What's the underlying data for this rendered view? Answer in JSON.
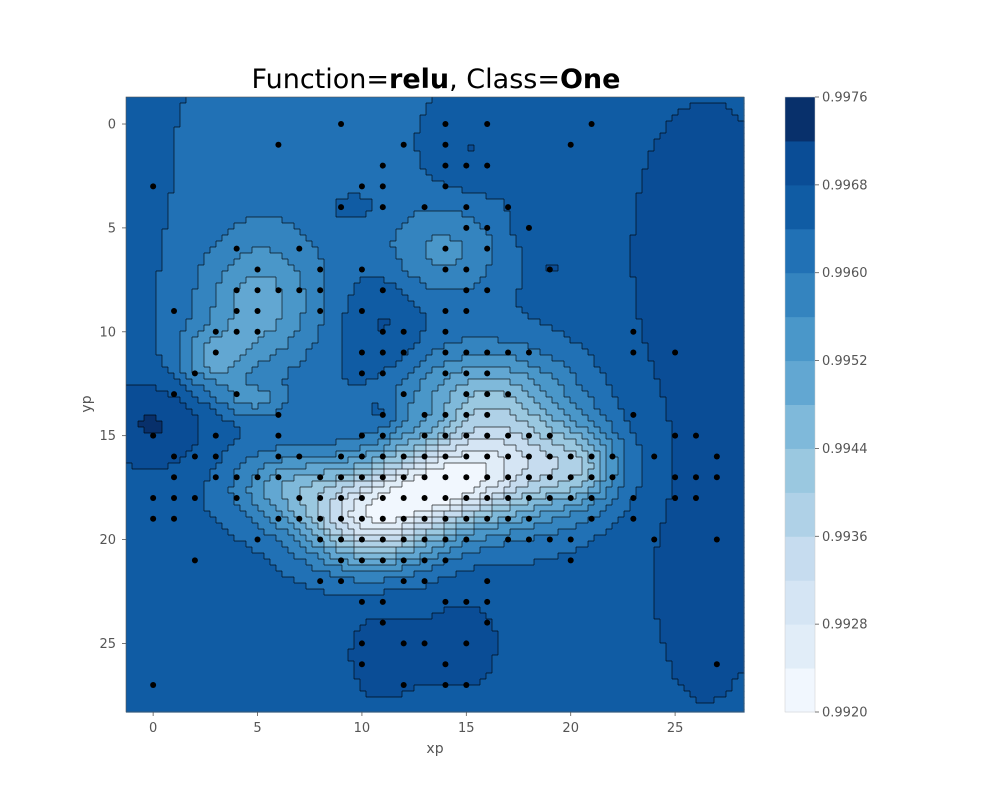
{
  "chart_data": {
    "type": "heatmap",
    "title_parts": [
      "Function=",
      "relu",
      ", Class=",
      "One"
    ],
    "xlabel": "xp",
    "ylabel": "yp",
    "xlim": [
      -1.3,
      28.3
    ],
    "ylim": [
      28.3,
      -1.3
    ],
    "x_ticks": [
      0,
      5,
      10,
      15,
      20,
      25
    ],
    "y_ticks": [
      0,
      5,
      10,
      15,
      20,
      25
    ],
    "colorbar": {
      "min": 0.992,
      "max": 0.9976,
      "levels": 14,
      "tick_values": [
        0.992,
        0.9928,
        0.9936,
        0.9944,
        0.9952,
        0.996,
        0.9968,
        0.9976
      ],
      "tick_labels": [
        "0.9920",
        "0.9928",
        "0.9936",
        "0.9944",
        "0.9952",
        "0.9960",
        "0.9968",
        "0.9976"
      ],
      "colors": [
        "#f1f7fe",
        "#e1edf8",
        "#d5e5f4",
        "#c6dcef",
        "#afd1e7",
        "#9ac8e0",
        "#7fb9da",
        "#62a7d2",
        "#4a97c9",
        "#3484bf",
        "#2171b5",
        "#105ca4",
        "#0a4d96",
        "#08306b"
      ]
    },
    "field": {
      "background": 0.99655,
      "features": [
        {
          "x": 10.5,
          "y": 19.0,
          "sx": 2.2,
          "sy": 1.6,
          "a": -0.0036
        },
        {
          "x": 16.5,
          "y": 16.5,
          "sx": 3.0,
          "sy": 1.9,
          "a": -0.0032
        },
        {
          "x": 13.5,
          "y": 17.5,
          "sx": 2.0,
          "sy": 1.3,
          "a": -0.0021
        },
        {
          "x": 16.0,
          "y": 13.0,
          "sx": 2.8,
          "sy": 1.7,
          "a": -0.0016
        },
        {
          "x": 6.5,
          "y": 17.5,
          "sx": 2.0,
          "sy": 1.3,
          "a": -0.0014
        },
        {
          "x": 5.0,
          "y": 8.8,
          "sx": 2.0,
          "sy": 2.3,
          "a": -0.0014
        },
        {
          "x": 2.8,
          "y": 11.4,
          "sx": 1.2,
          "sy": 1.0,
          "a": -0.0011
        },
        {
          "x": 14.0,
          "y": 6.2,
          "sx": 2.0,
          "sy": 1.6,
          "a": -0.0009
        },
        {
          "x": 20.5,
          "y": 16.5,
          "sx": 1.3,
          "sy": 1.2,
          "a": -0.0012
        },
        {
          "x": 4.8,
          "y": 13.3,
          "sx": 1.2,
          "sy": 0.6,
          "a": -0.0008
        },
        {
          "x": 8.0,
          "y": 2.0,
          "sx": 5.0,
          "sy": 6.0,
          "a": -0.0004
        },
        {
          "x": 11.0,
          "y": 9.5,
          "sx": 1.4,
          "sy": 2.0,
          "a": 0.0005
        },
        {
          "x": 15.0,
          "y": 1.2,
          "sx": 1.5,
          "sy": 1.4,
          "a": 0.0004
        },
        {
          "x": 9.5,
          "y": 4.0,
          "sx": 1.5,
          "sy": 0.9,
          "a": 0.0003
        },
        {
          "x": 11.0,
          "y": 25.5,
          "sx": 1.6,
          "sy": 2.2,
          "a": 0.0004
        },
        {
          "x": 15.0,
          "y": 25.0,
          "sx": 1.5,
          "sy": 2.0,
          "a": 0.0004
        },
        {
          "x": 0.0,
          "y": 14.5,
          "sx": 1.8,
          "sy": 1.5,
          "a": 0.0007
        },
        {
          "x": 26.5,
          "y": 6.0,
          "sx": 3.0,
          "sy": 6.0,
          "a": 0.0005
        },
        {
          "x": 26.5,
          "y": 22.0,
          "sx": 2.5,
          "sy": 6.0,
          "a": 0.0004
        },
        {
          "x": 19.0,
          "y": 7.0,
          "sx": 0.7,
          "sy": 0.6,
          "a": 0.0003
        },
        {
          "x": 18.0,
          "y": 5.0,
          "sx": 0.7,
          "sy": 0.6,
          "a": 0.0003
        },
        {
          "x": 11.0,
          "y": 14.0,
          "sx": 0.6,
          "sy": 0.6,
          "a": 0.0004
        },
        {
          "x": 13.5,
          "y": 14.5,
          "sx": 0.8,
          "sy": 0.8,
          "a": 0.0004
        }
      ]
    },
    "points": [
      [
        0,
        3
      ],
      [
        0,
        15
      ],
      [
        0,
        18
      ],
      [
        0,
        19
      ],
      [
        0,
        27
      ],
      [
        1,
        9
      ],
      [
        1,
        13
      ],
      [
        1,
        16
      ],
      [
        1,
        17
      ],
      [
        1,
        18
      ],
      [
        1,
        19
      ],
      [
        2,
        12
      ],
      [
        2,
        16
      ],
      [
        2,
        18
      ],
      [
        2,
        21
      ],
      [
        3,
        10
      ],
      [
        3,
        11
      ],
      [
        3,
        15
      ],
      [
        3,
        16
      ],
      [
        3,
        17
      ],
      [
        4,
        6
      ],
      [
        4,
        8
      ],
      [
        4,
        9
      ],
      [
        4,
        10
      ],
      [
        4,
        13
      ],
      [
        4,
        17
      ],
      [
        4,
        18
      ],
      [
        5,
        7
      ],
      [
        5,
        8
      ],
      [
        5,
        9
      ],
      [
        5,
        10
      ],
      [
        5,
        17
      ],
      [
        5,
        20
      ],
      [
        6,
        1
      ],
      [
        6,
        8
      ],
      [
        6,
        14
      ],
      [
        6,
        15
      ],
      [
        6,
        16
      ],
      [
        6,
        17
      ],
      [
        6,
        19
      ],
      [
        7,
        6
      ],
      [
        7,
        8
      ],
      [
        7,
        16
      ],
      [
        7,
        18
      ],
      [
        7,
        19
      ],
      [
        8,
        7
      ],
      [
        8,
        8
      ],
      [
        8,
        9
      ],
      [
        8,
        17
      ],
      [
        8,
        18
      ],
      [
        8,
        19
      ],
      [
        8,
        20
      ],
      [
        8,
        22
      ],
      [
        9,
        0
      ],
      [
        9,
        4
      ],
      [
        9,
        16
      ],
      [
        9,
        17
      ],
      [
        9,
        18
      ],
      [
        9,
        19
      ],
      [
        9,
        20
      ],
      [
        9,
        21
      ],
      [
        9,
        22
      ],
      [
        10,
        3
      ],
      [
        10,
        7
      ],
      [
        10,
        9
      ],
      [
        10,
        11
      ],
      [
        10,
        12
      ],
      [
        10,
        15
      ],
      [
        10,
        16
      ],
      [
        10,
        17
      ],
      [
        10,
        18
      ],
      [
        10,
        19
      ],
      [
        10,
        20
      ],
      [
        10,
        21
      ],
      [
        10,
        23
      ],
      [
        10,
        25
      ],
      [
        10,
        26
      ],
      [
        11,
        2
      ],
      [
        11,
        3
      ],
      [
        11,
        4
      ],
      [
        11,
        8
      ],
      [
        11,
        10
      ],
      [
        11,
        11
      ],
      [
        11,
        12
      ],
      [
        11,
        14
      ],
      [
        11,
        15
      ],
      [
        11,
        16
      ],
      [
        11,
        17
      ],
      [
        11,
        18
      ],
      [
        11,
        19
      ],
      [
        11,
        20
      ],
      [
        11,
        21
      ],
      [
        11,
        23
      ],
      [
        11,
        24
      ],
      [
        12,
        1
      ],
      [
        12,
        10
      ],
      [
        12,
        11
      ],
      [
        12,
        13
      ],
      [
        12,
        16
      ],
      [
        12,
        17
      ],
      [
        12,
        18
      ],
      [
        12,
        19
      ],
      [
        12,
        20
      ],
      [
        12,
        21
      ],
      [
        12,
        22
      ],
      [
        12,
        25
      ],
      [
        12,
        27
      ],
      [
        13,
        4
      ],
      [
        13,
        14
      ],
      [
        13,
        15
      ],
      [
        13,
        16
      ],
      [
        13,
        17
      ],
      [
        13,
        18
      ],
      [
        13,
        19
      ],
      [
        13,
        20
      ],
      [
        13,
        21
      ],
      [
        13,
        22
      ],
      [
        13,
        25
      ],
      [
        14,
        0
      ],
      [
        14,
        1
      ],
      [
        14,
        2
      ],
      [
        14,
        3
      ],
      [
        14,
        6
      ],
      [
        14,
        7
      ],
      [
        14,
        9
      ],
      [
        14,
        10
      ],
      [
        14,
        11
      ],
      [
        14,
        12
      ],
      [
        14,
        14
      ],
      [
        14,
        15
      ],
      [
        14,
        16
      ],
      [
        14,
        17
      ],
      [
        14,
        18
      ],
      [
        14,
        19
      ],
      [
        14,
        20
      ],
      [
        14,
        21
      ],
      [
        14,
        23
      ],
      [
        14,
        26
      ],
      [
        14,
        27
      ],
      [
        15,
        2
      ],
      [
        15,
        4
      ],
      [
        15,
        5
      ],
      [
        15,
        7
      ],
      [
        15,
        8
      ],
      [
        15,
        9
      ],
      [
        15,
        11
      ],
      [
        15,
        12
      ],
      [
        15,
        13
      ],
      [
        15,
        14
      ],
      [
        15,
        15
      ],
      [
        15,
        16
      ],
      [
        15,
        17
      ],
      [
        15,
        18
      ],
      [
        15,
        19
      ],
      [
        15,
        20
      ],
      [
        15,
        23
      ],
      [
        15,
        25
      ],
      [
        15,
        27
      ],
      [
        16,
        0
      ],
      [
        16,
        2
      ],
      [
        16,
        5
      ],
      [
        16,
        6
      ],
      [
        16,
        8
      ],
      [
        16,
        11
      ],
      [
        16,
        12
      ],
      [
        16,
        13
      ],
      [
        16,
        14
      ],
      [
        16,
        15
      ],
      [
        16,
        16
      ],
      [
        16,
        17
      ],
      [
        16,
        18
      ],
      [
        16,
        19
      ],
      [
        16,
        22
      ],
      [
        16,
        23
      ],
      [
        16,
        24
      ],
      [
        17,
        4
      ],
      [
        17,
        11
      ],
      [
        17,
        13
      ],
      [
        17,
        15
      ],
      [
        17,
        16
      ],
      [
        17,
        17
      ],
      [
        17,
        18
      ],
      [
        17,
        19
      ],
      [
        17,
        20
      ],
      [
        18,
        5
      ],
      [
        18,
        11
      ],
      [
        18,
        15
      ],
      [
        18,
        16
      ],
      [
        18,
        17
      ],
      [
        18,
        18
      ],
      [
        18,
        19
      ],
      [
        18,
        20
      ],
      [
        19,
        7
      ],
      [
        19,
        15
      ],
      [
        19,
        16
      ],
      [
        19,
        17
      ],
      [
        19,
        18
      ],
      [
        19,
        20
      ],
      [
        20,
        1
      ],
      [
        20,
        16
      ],
      [
        20,
        17
      ],
      [
        20,
        18
      ],
      [
        20,
        20
      ],
      [
        20,
        21
      ],
      [
        21,
        0
      ],
      [
        21,
        16
      ],
      [
        21,
        17
      ],
      [
        21,
        18
      ],
      [
        21,
        19
      ],
      [
        22,
        16
      ],
      [
        22,
        17
      ],
      [
        23,
        10
      ],
      [
        23,
        11
      ],
      [
        23,
        14
      ],
      [
        23,
        18
      ],
      [
        23,
        19
      ],
      [
        24,
        16
      ],
      [
        24,
        20
      ],
      [
        25,
        11
      ],
      [
        25,
        15
      ],
      [
        25,
        17
      ],
      [
        25,
        18
      ],
      [
        26,
        15
      ],
      [
        26,
        17
      ],
      [
        26,
        18
      ],
      [
        27,
        16
      ],
      [
        27,
        17
      ],
      [
        27,
        20
      ],
      [
        27,
        26
      ]
    ]
  }
}
